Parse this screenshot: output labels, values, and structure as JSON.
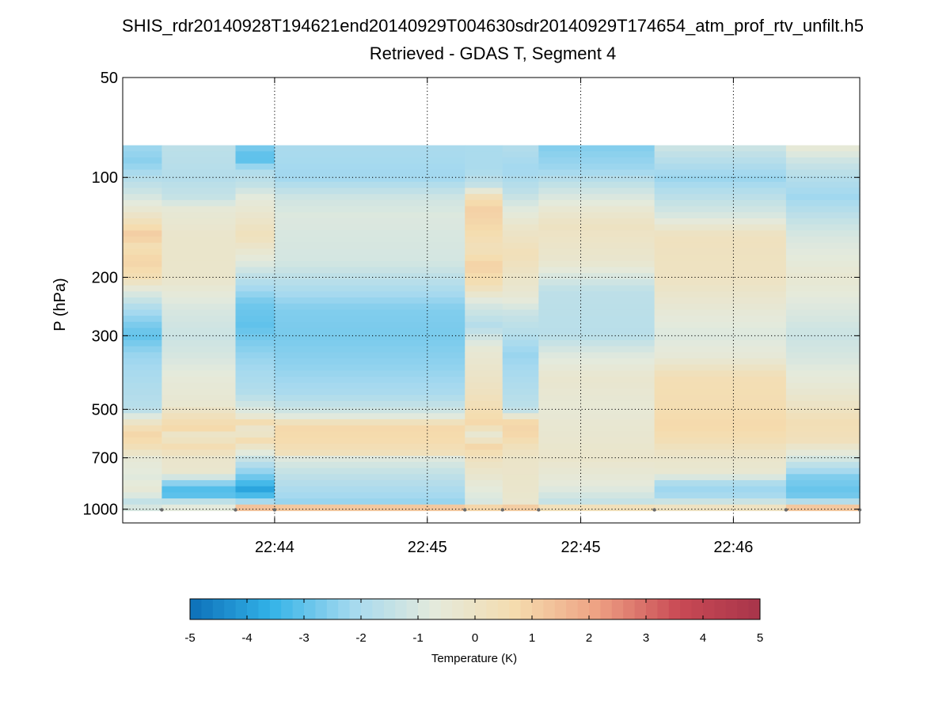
{
  "title": {
    "line1": "SHIS_rdr20140928T194621end20140929T004630sdr20140929T174654_atm_prof_rtv_unfilt.h5",
    "line2": "Retrieved - GDAS T, Segment 4"
  },
  "chart_data": {
    "type": "heatmap",
    "ylabel": "P (hPa)",
    "xlabel": "",
    "y_scale": "log",
    "y_reversed": true,
    "ylim": [
      50,
      1100
    ],
    "y_ticks": [
      50,
      100,
      200,
      300,
      500,
      700,
      1000
    ],
    "y_tick_labels": [
      "50",
      "100",
      "200",
      "300",
      "500",
      "700",
      "1000"
    ],
    "x_tick_labels": [
      "22:44",
      "22:45",
      "22:45",
      "22:46"
    ],
    "x_tick_positions": [
      2.02,
      4.05,
      6.09,
      8.12
    ],
    "xlim": [
      0,
      9.8
    ],
    "grid": true,
    "colorbar": {
      "label": "Temperature (K)",
      "range": [
        -5,
        5
      ],
      "ticks": [
        -5,
        -4,
        -3,
        -2,
        -1,
        0,
        1,
        2,
        3,
        4,
        5
      ],
      "colors": [
        "#0c6fb8",
        "#33b3e8",
        "#a5d9ef",
        "#e4eadc",
        "#f5dcae",
        "#eea183",
        "#c94a55",
        "#a8344a"
      ]
    },
    "surface_markers_x": [
      0.52,
      1.5,
      2.02,
      4.55,
      5.05,
      5.53,
      7.07,
      8.82,
      9.8
    ],
    "columns": [
      {
        "x0": 0.0,
        "x1": 0.52,
        "profile": [
          [
            80,
            -2.2
          ],
          [
            90,
            -2.5
          ],
          [
            100,
            -1.8
          ],
          [
            110,
            -1.3
          ],
          [
            125,
            -0.4
          ],
          [
            140,
            0.6
          ],
          [
            150,
            1.2
          ],
          [
            160,
            0.5
          ],
          [
            180,
            0.9
          ],
          [
            200,
            0.5
          ],
          [
            220,
            -0.8
          ],
          [
            250,
            -2.0
          ],
          [
            280,
            -2.7
          ],
          [
            300,
            -3.0
          ],
          [
            340,
            -2.3
          ],
          [
            400,
            -2.0
          ],
          [
            500,
            -1.7
          ],
          [
            560,
            0.3
          ],
          [
            600,
            0.9
          ],
          [
            650,
            0.4
          ],
          [
            700,
            -0.5
          ],
          [
            800,
            -0.8
          ],
          [
            880,
            -0.5
          ],
          [
            950,
            -1.5
          ],
          [
            1010,
            -0.8
          ]
        ]
      },
      {
        "x0": 0.52,
        "x1": 1.5,
        "profile": [
          [
            80,
            -1.6
          ],
          [
            100,
            -1.8
          ],
          [
            115,
            -1.4
          ],
          [
            125,
            -0.5
          ],
          [
            150,
            -0.2
          ],
          [
            200,
            -0.2
          ],
          [
            250,
            -1.0
          ],
          [
            300,
            -1.3
          ],
          [
            350,
            -1.0
          ],
          [
            400,
            -0.6
          ],
          [
            480,
            -0.4
          ],
          [
            540,
            0.5
          ],
          [
            570,
            0.8
          ],
          [
            600,
            -0.2
          ],
          [
            650,
            0.6
          ],
          [
            700,
            -0.2
          ],
          [
            780,
            -0.3
          ],
          [
            850,
            -3.0
          ],
          [
            900,
            -3.4
          ],
          [
            950,
            -1.5
          ],
          [
            1000,
            -0.5
          ],
          [
            1010,
            0.8
          ]
        ]
      },
      {
        "x0": 1.5,
        "x1": 2.02,
        "profile": [
          [
            80,
            -2.6
          ],
          [
            88,
            -3.2
          ],
          [
            95,
            -1.9
          ],
          [
            105,
            -1.5
          ],
          [
            115,
            -0.7
          ],
          [
            150,
            0.3
          ],
          [
            180,
            -0.8
          ],
          [
            200,
            -1.6
          ],
          [
            240,
            -2.8
          ],
          [
            280,
            -3.0
          ],
          [
            350,
            -2.3
          ],
          [
            450,
            -1.8
          ],
          [
            520,
            -0.6
          ],
          [
            550,
            0.7
          ],
          [
            580,
            -0.5
          ],
          [
            620,
            0.6
          ],
          [
            700,
            -1.3
          ],
          [
            780,
            -2.5
          ],
          [
            880,
            -4.0
          ],
          [
            920,
            -3.0
          ],
          [
            950,
            -2.0
          ],
          [
            980,
            1.5
          ],
          [
            1010,
            0.9
          ]
        ]
      },
      {
        "x0": 2.02,
        "x1": 4.55,
        "profile": [
          [
            80,
            -2.0
          ],
          [
            100,
            -2.2
          ],
          [
            115,
            -1.2
          ],
          [
            130,
            -0.9
          ],
          [
            180,
            -1.1
          ],
          [
            210,
            -1.8
          ],
          [
            250,
            -2.6
          ],
          [
            300,
            -2.7
          ],
          [
            370,
            -2.4
          ],
          [
            450,
            -2.0
          ],
          [
            520,
            -1.0
          ],
          [
            560,
            0.8
          ],
          [
            620,
            0.7
          ],
          [
            680,
            0.3
          ],
          [
            700,
            -0.8
          ],
          [
            780,
            -1.5
          ],
          [
            880,
            -2.0
          ],
          [
            950,
            -2.3
          ],
          [
            975,
            1.0
          ],
          [
            1010,
            1.5
          ]
        ]
      },
      {
        "x0": 4.55,
        "x1": 5.05,
        "profile": [
          [
            80,
            -2.0
          ],
          [
            95,
            -2.0
          ],
          [
            105,
            -1.5
          ],
          [
            115,
            0.5
          ],
          [
            125,
            1.0
          ],
          [
            140,
            0.8
          ],
          [
            165,
            0.3
          ],
          [
            185,
            1.0
          ],
          [
            210,
            0.5
          ],
          [
            240,
            -1.0
          ],
          [
            280,
            -1.8
          ],
          [
            330,
            -0.5
          ],
          [
            450,
            0.2
          ],
          [
            550,
            0.8
          ],
          [
            600,
            -0.5
          ],
          [
            650,
            0.9
          ],
          [
            700,
            0.2
          ],
          [
            850,
            -0.6
          ],
          [
            950,
            -1.0
          ],
          [
            990,
            0.9
          ],
          [
            1010,
            0.3
          ]
        ]
      },
      {
        "x0": 5.05,
        "x1": 5.53,
        "profile": [
          [
            80,
            -1.8
          ],
          [
            95,
            -2.2
          ],
          [
            110,
            -1.6
          ],
          [
            125,
            -0.8
          ],
          [
            140,
            -0.2
          ],
          [
            170,
            0.4
          ],
          [
            230,
            -0.5
          ],
          [
            260,
            -1.4
          ],
          [
            300,
            -1.8
          ],
          [
            340,
            -2.3
          ],
          [
            400,
            -2.0
          ],
          [
            500,
            -1.6
          ],
          [
            550,
            0.9
          ],
          [
            600,
            0.8
          ],
          [
            650,
            0.3
          ],
          [
            700,
            -0.1
          ],
          [
            850,
            -0.2
          ],
          [
            950,
            -0.3
          ],
          [
            980,
            1.2
          ],
          [
            1010,
            0.8
          ]
        ]
      },
      {
        "x0": 5.53,
        "x1": 7.07,
        "profile": [
          [
            80,
            -2.6
          ],
          [
            95,
            -2.2
          ],
          [
            110,
            -1.2
          ],
          [
            125,
            -0.4
          ],
          [
            140,
            0.1
          ],
          [
            180,
            -0.3
          ],
          [
            220,
            -1.6
          ],
          [
            300,
            -1.7
          ],
          [
            340,
            -0.9
          ],
          [
            400,
            -0.3
          ],
          [
            500,
            -0.5
          ],
          [
            620,
            -0.3
          ],
          [
            700,
            -0.2
          ],
          [
            850,
            -0.7
          ],
          [
            950,
            -1.4
          ],
          [
            980,
            0.8
          ],
          [
            1010,
            -0.7
          ]
        ]
      },
      {
        "x0": 7.07,
        "x1": 8.82,
        "profile": [
          [
            80,
            -1.2
          ],
          [
            90,
            -1.8
          ],
          [
            100,
            -2.3
          ],
          [
            115,
            -1.6
          ],
          [
            130,
            -1.0
          ],
          [
            150,
            0.2
          ],
          [
            200,
            0.1
          ],
          [
            260,
            -0.6
          ],
          [
            300,
            -0.9
          ],
          [
            350,
            -0.5
          ],
          [
            400,
            0.5
          ],
          [
            500,
            0.6
          ],
          [
            560,
            0.8
          ],
          [
            620,
            0.5
          ],
          [
            700,
            -0.2
          ],
          [
            780,
            -0.4
          ],
          [
            850,
            -2.3
          ],
          [
            920,
            -2.0
          ],
          [
            960,
            -1.0
          ],
          [
            1000,
            0.5
          ],
          [
            1010,
            1.8
          ]
        ]
      },
      {
        "x0": 8.82,
        "x1": 9.8,
        "profile": [
          [
            80,
            -0.4
          ],
          [
            90,
            -1.3
          ],
          [
            100,
            -1.8
          ],
          [
            115,
            -2.2
          ],
          [
            130,
            -1.6
          ],
          [
            150,
            -1.0
          ],
          [
            200,
            -0.4
          ],
          [
            250,
            -0.9
          ],
          [
            300,
            -1.3
          ],
          [
            350,
            -1.0
          ],
          [
            450,
            -0.3
          ],
          [
            550,
            0.5
          ],
          [
            620,
            0.3
          ],
          [
            700,
            -1.0
          ],
          [
            800,
            -2.6
          ],
          [
            900,
            -3.0
          ],
          [
            960,
            -1.5
          ],
          [
            990,
            1.3
          ],
          [
            1010,
            -0.5
          ]
        ]
      }
    ]
  }
}
